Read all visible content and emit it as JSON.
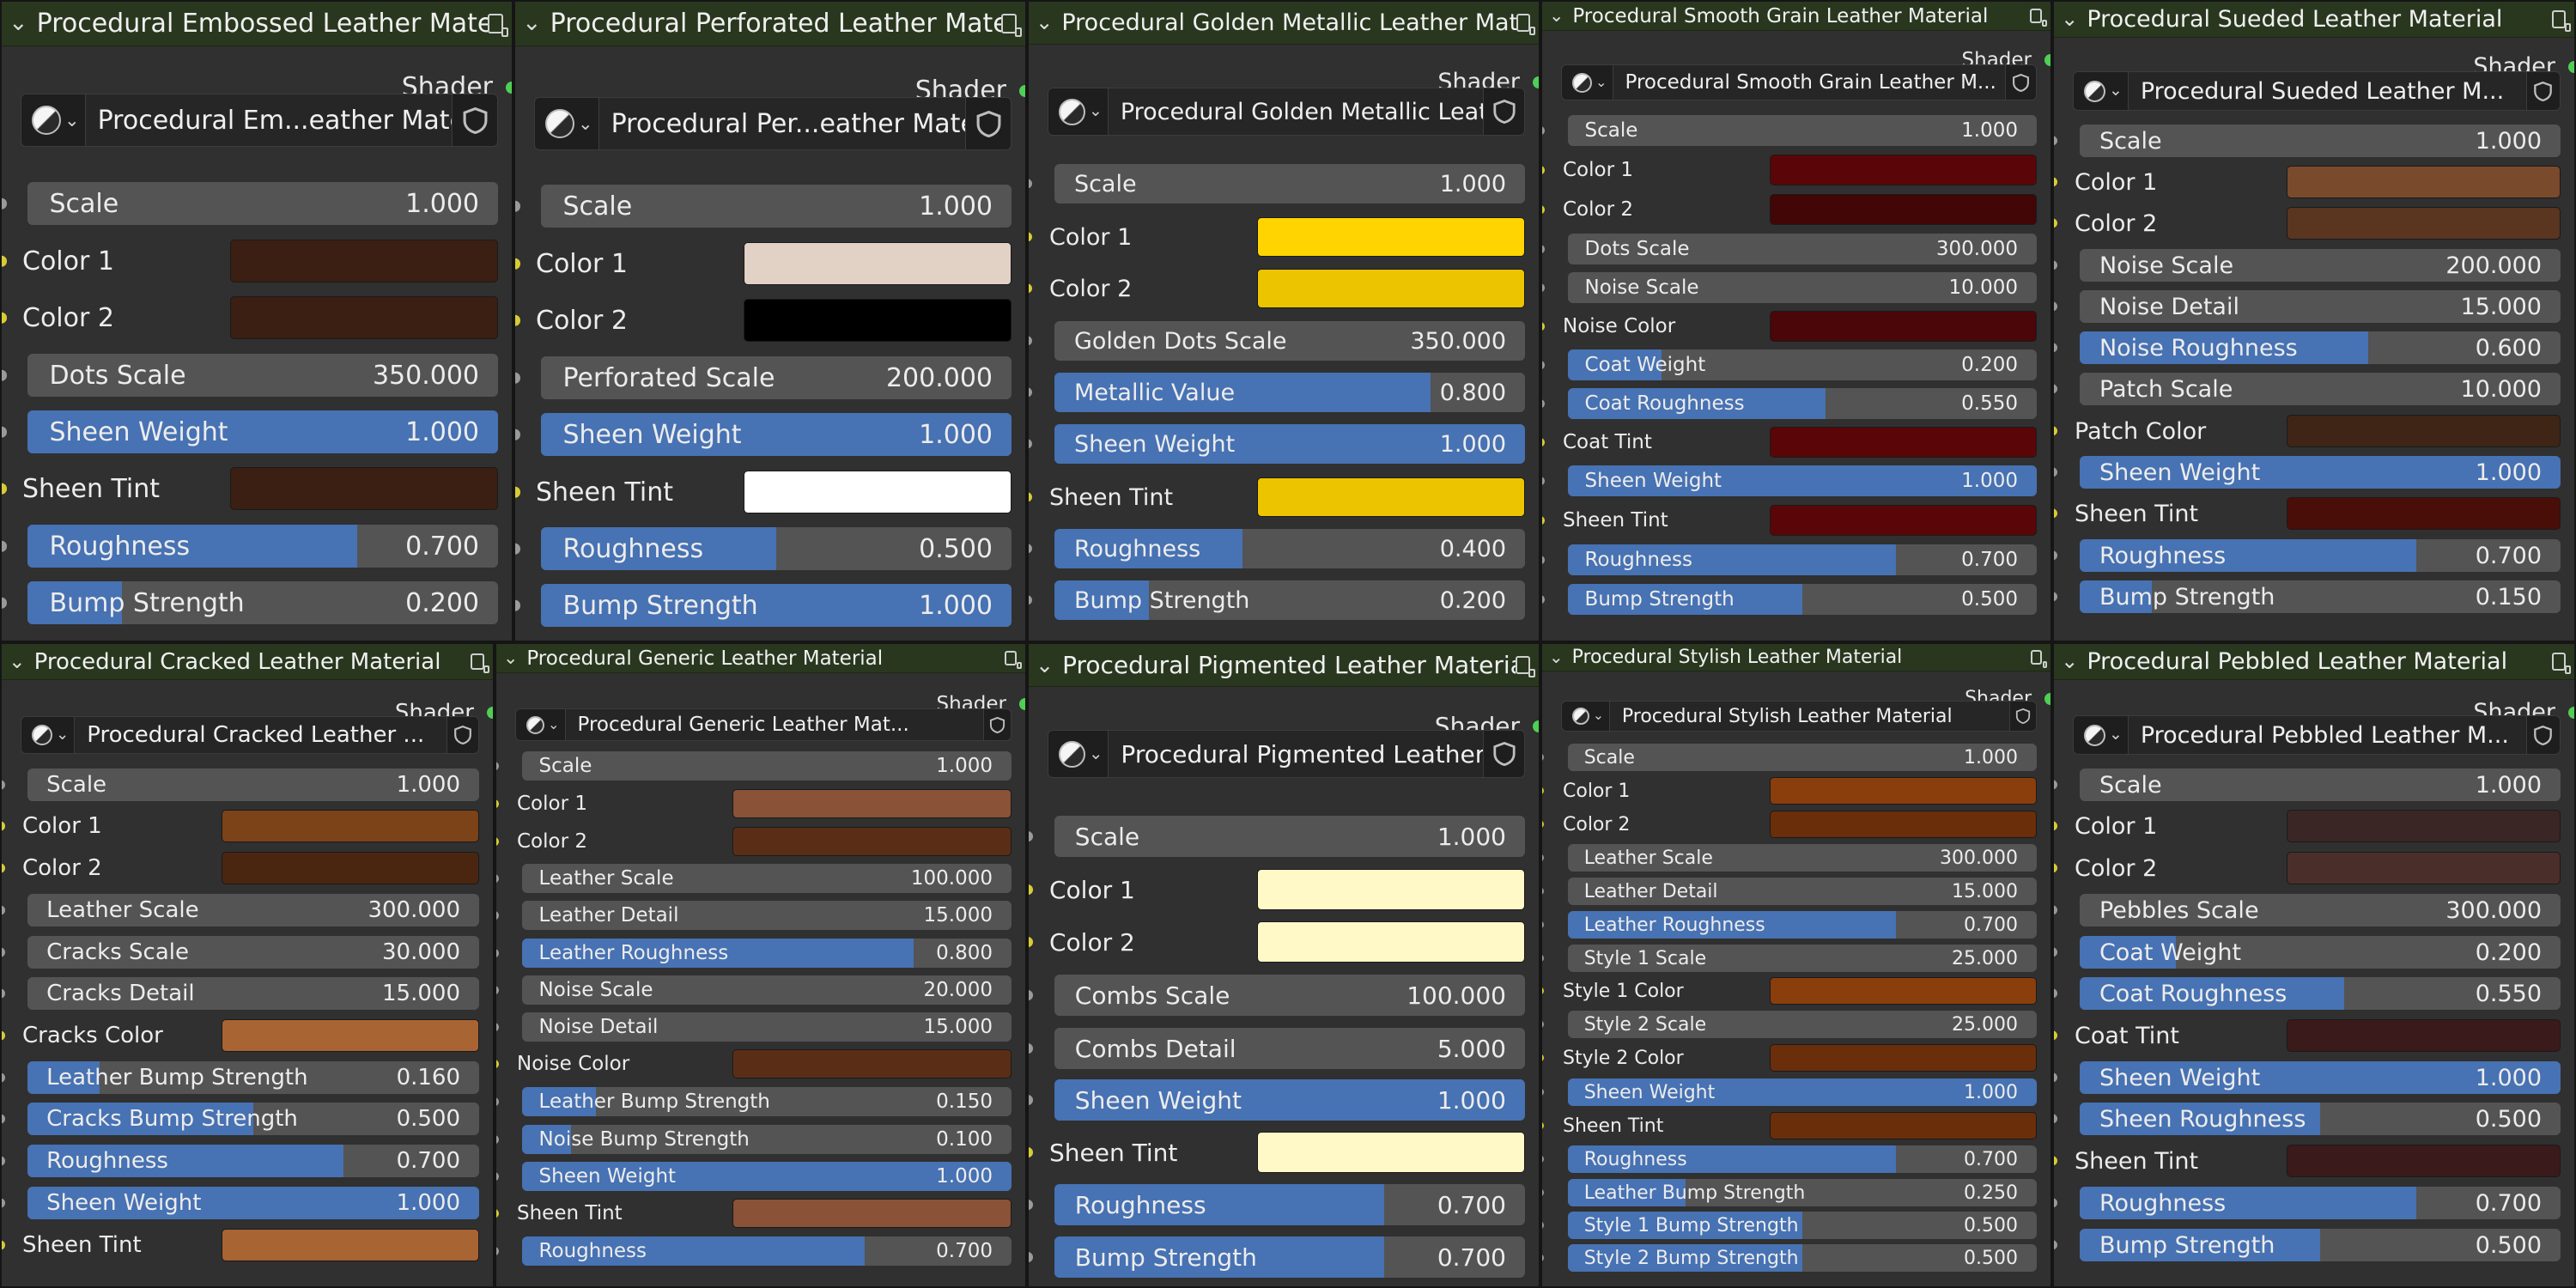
{
  "output_label": "Shader",
  "nodes": [
    {
      "title": "Procedural Embossed Leather Material",
      "material": "Procedural Em...eather Material",
      "params": [
        {
          "label": "Scale",
          "value": "1.000",
          "type": "num",
          "fill": 0
        },
        {
          "label": "Color 1",
          "type": "color",
          "color": "#3a1f12"
        },
        {
          "label": "Color 2",
          "type": "color",
          "color": "#3a1f12"
        },
        {
          "label": "Dots Scale",
          "value": "350.000",
          "type": "num",
          "fill": 0
        },
        {
          "label": "Sheen Weight",
          "value": "1.000",
          "type": "num",
          "fill": 1
        },
        {
          "label": "Sheen Tint",
          "type": "color",
          "color": "#3a1f12"
        },
        {
          "label": "Roughness",
          "value": "0.700",
          "type": "num",
          "fill": 0.7
        },
        {
          "label": "Bump Strength",
          "value": "0.200",
          "type": "num",
          "fill": 0.2
        }
      ]
    },
    {
      "title": "Procedural Perforated Leather Material",
      "material": "Procedural Per...eather Material",
      "params": [
        {
          "label": "Scale",
          "value": "1.000",
          "type": "num",
          "fill": 0
        },
        {
          "label": "Color 1",
          "type": "color",
          "color": "#e2d1c5"
        },
        {
          "label": "Color 2",
          "type": "color",
          "color": "#000000"
        },
        {
          "label": "Perforated Scale",
          "value": "200.000",
          "type": "num",
          "fill": 0
        },
        {
          "label": "Sheen Weight",
          "value": "1.000",
          "type": "num",
          "fill": 1
        },
        {
          "label": "Sheen Tint",
          "type": "color",
          "color": "#ffffff"
        },
        {
          "label": "Roughness",
          "value": "0.500",
          "type": "num",
          "fill": 0.5
        },
        {
          "label": "Bump Strength",
          "value": "1.000",
          "type": "num",
          "fill": 1
        }
      ]
    },
    {
      "title": "Procedural Golden Metallic Leather Material",
      "material": "Procedural Golden Metallic Leather ...",
      "params": [
        {
          "label": "Scale",
          "value": "1.000",
          "type": "num",
          "fill": 0
        },
        {
          "label": "Color 1",
          "type": "color",
          "color": "#ffd400"
        },
        {
          "label": "Color 2",
          "type": "color",
          "color": "#ecc400"
        },
        {
          "label": "Golden Dots Scale",
          "value": "350.000",
          "type": "num",
          "fill": 0
        },
        {
          "label": "Metallic Value",
          "value": "0.800",
          "type": "num",
          "fill": 0.8
        },
        {
          "label": "Sheen Weight",
          "value": "1.000",
          "type": "num",
          "fill": 1
        },
        {
          "label": "Sheen Tint",
          "type": "color",
          "color": "#ecc400"
        },
        {
          "label": "Roughness",
          "value": "0.400",
          "type": "num",
          "fill": 0.4
        },
        {
          "label": "Bump Strength",
          "value": "0.200",
          "type": "num",
          "fill": 0.2
        }
      ]
    },
    {
      "title": "Procedural Smooth Grain Leather Material",
      "material": "Procedural Smooth Grain Leather M...",
      "params": [
        {
          "label": "Scale",
          "value": "1.000",
          "type": "num",
          "fill": 0
        },
        {
          "label": "Color 1",
          "type": "color",
          "color": "#5a0608"
        },
        {
          "label": "Color 2",
          "type": "color",
          "color": "#420606"
        },
        {
          "label": "Dots Scale",
          "value": "300.000",
          "type": "num",
          "fill": 0
        },
        {
          "label": "Noise Scale",
          "value": "10.000",
          "type": "num",
          "fill": 0
        },
        {
          "label": "Noise Color",
          "type": "color",
          "color": "#4a0608"
        },
        {
          "label": "Coat Weight",
          "value": "0.200",
          "type": "num",
          "fill": 0.2
        },
        {
          "label": "Coat Roughness",
          "value": "0.550",
          "type": "num",
          "fill": 0.55
        },
        {
          "label": "Coat Tint",
          "type": "color",
          "color": "#5a0608"
        },
        {
          "label": "Sheen Weight",
          "value": "1.000",
          "type": "num",
          "fill": 1
        },
        {
          "label": "Sheen Tint",
          "type": "color",
          "color": "#5a0608"
        },
        {
          "label": "Roughness",
          "value": "0.700",
          "type": "num",
          "fill": 0.7
        },
        {
          "label": "Bump Strength",
          "value": "0.500",
          "type": "num",
          "fill": 0.5
        }
      ]
    },
    {
      "title": "Procedural Sueded Leather Material",
      "material": "Procedural Sueded Leather M...",
      "params": [
        {
          "label": "Scale",
          "value": "1.000",
          "type": "num",
          "fill": 0
        },
        {
          "label": "Color 1",
          "type": "color",
          "color": "#7a4a2c"
        },
        {
          "label": "Color 2",
          "type": "color",
          "color": "#5a3520"
        },
        {
          "label": "Noise Scale",
          "value": "200.000",
          "type": "num",
          "fill": 0
        },
        {
          "label": "Noise Detail",
          "value": "15.000",
          "type": "num",
          "fill": 0
        },
        {
          "label": "Noise Roughness",
          "value": "0.600",
          "type": "num",
          "fill": 0.6
        },
        {
          "label": "Patch Scale",
          "value": "10.000",
          "type": "num",
          "fill": 0
        },
        {
          "label": "Patch Color",
          "type": "color",
          "color": "#3e2516"
        },
        {
          "label": "Sheen Weight",
          "value": "1.000",
          "type": "num",
          "fill": 1
        },
        {
          "label": "Sheen Tint",
          "type": "color",
          "color": "#4a0e08"
        },
        {
          "label": "Roughness",
          "value": "0.700",
          "type": "num",
          "fill": 0.7
        },
        {
          "label": "Bump Strength",
          "value": "0.150",
          "type": "num",
          "fill": 0.15
        }
      ]
    },
    {
      "title": "Procedural Cracked Leather Material",
      "material": "Procedural Cracked Leather ...",
      "params": [
        {
          "label": "Scale",
          "value": "1.000",
          "type": "num",
          "fill": 0
        },
        {
          "label": "Color 1",
          "type": "color",
          "color": "#7c4218"
        },
        {
          "label": "Color 2",
          "type": "color",
          "color": "#4a2610"
        },
        {
          "label": "Leather Scale",
          "value": "300.000",
          "type": "num",
          "fill": 0
        },
        {
          "label": "Cracks Scale",
          "value": "30.000",
          "type": "num",
          "fill": 0
        },
        {
          "label": "Cracks Detail",
          "value": "15.000",
          "type": "num",
          "fill": 0
        },
        {
          "label": "Cracks Color",
          "type": "color",
          "color": "#a86432"
        },
        {
          "label": "Leather Bump Strength",
          "value": "0.160",
          "type": "num",
          "fill": 0.16
        },
        {
          "label": "Cracks Bump Strength",
          "value": "0.500",
          "type": "num",
          "fill": 0.5
        },
        {
          "label": "Roughness",
          "value": "0.700",
          "type": "num",
          "fill": 0.7
        },
        {
          "label": "Sheen Weight",
          "value": "1.000",
          "type": "num",
          "fill": 1
        },
        {
          "label": "Sheen Tint",
          "type": "color",
          "color": "#a86432"
        }
      ]
    },
    {
      "title": "Procedural Generic Leather Material",
      "material": "Procedural Generic Leather Mat...",
      "params": [
        {
          "label": "Scale",
          "value": "1.000",
          "type": "num",
          "fill": 0
        },
        {
          "label": "Color 1",
          "type": "color",
          "color": "#8a5236"
        },
        {
          "label": "Color 2",
          "type": "color",
          "color": "#5a2e16"
        },
        {
          "label": "Leather Scale",
          "value": "100.000",
          "type": "num",
          "fill": 0
        },
        {
          "label": "Leather Detail",
          "value": "15.000",
          "type": "num",
          "fill": 0
        },
        {
          "label": "Leather Roughness",
          "value": "0.800",
          "type": "num",
          "fill": 0.8
        },
        {
          "label": "Noise Scale",
          "value": "20.000",
          "type": "num",
          "fill": 0
        },
        {
          "label": "Noise Detail",
          "value": "15.000",
          "type": "num",
          "fill": 0
        },
        {
          "label": "Noise Color",
          "type": "color",
          "color": "#5a2e16"
        },
        {
          "label": "Leather Bump Strength",
          "value": "0.150",
          "type": "num",
          "fill": 0.15
        },
        {
          "label": "Noise Bump Strength",
          "value": "0.100",
          "type": "num",
          "fill": 0.1
        },
        {
          "label": "Sheen Weight",
          "value": "1.000",
          "type": "num",
          "fill": 1
        },
        {
          "label": "Sheen Tint",
          "type": "color",
          "color": "#8a5236"
        },
        {
          "label": "Roughness",
          "value": "0.700",
          "type": "num",
          "fill": 0.7
        }
      ]
    },
    {
      "title": "Procedural Pigmented Leather Material",
      "material": "Procedural Pigmented Leather ...",
      "params": [
        {
          "label": "Scale",
          "value": "1.000",
          "type": "num",
          "fill": 0
        },
        {
          "label": "Color 1",
          "type": "color",
          "color": "#fff9c8"
        },
        {
          "label": "Color 2",
          "type": "color",
          "color": "#fff9c8"
        },
        {
          "label": "Combs Scale",
          "value": "100.000",
          "type": "num",
          "fill": 0
        },
        {
          "label": "Combs Detail",
          "value": "5.000",
          "type": "num",
          "fill": 0
        },
        {
          "label": "Sheen Weight",
          "value": "1.000",
          "type": "num",
          "fill": 1
        },
        {
          "label": "Sheen Tint",
          "type": "color",
          "color": "#fff9c8"
        },
        {
          "label": "Roughness",
          "value": "0.700",
          "type": "num",
          "fill": 0.7
        },
        {
          "label": "Bump Strength",
          "value": "0.700",
          "type": "num",
          "fill": 0.7
        }
      ]
    },
    {
      "title": "Procedural Stylish Leather Material",
      "material": "Procedural Stylish Leather Material",
      "params": [
        {
          "label": "Scale",
          "value": "1.000",
          "type": "num",
          "fill": 0
        },
        {
          "label": "Color 1",
          "type": "color",
          "color": "#8a3e0c"
        },
        {
          "label": "Color 2",
          "type": "color",
          "color": "#6a2e0a"
        },
        {
          "label": "Leather Scale",
          "value": "300.000",
          "type": "num",
          "fill": 0
        },
        {
          "label": "Leather Detail",
          "value": "15.000",
          "type": "num",
          "fill": 0
        },
        {
          "label": "Leather Roughness",
          "value": "0.700",
          "type": "num",
          "fill": 0.7
        },
        {
          "label": "Style 1 Scale",
          "value": "25.000",
          "type": "num",
          "fill": 0
        },
        {
          "label": "Style 1 Color",
          "type": "color",
          "color": "#8a3e0c"
        },
        {
          "label": "Style 2 Scale",
          "value": "25.000",
          "type": "num",
          "fill": 0
        },
        {
          "label": "Style 2 Color",
          "type": "color",
          "color": "#6a2e0a"
        },
        {
          "label": "Sheen Weight",
          "value": "1.000",
          "type": "num",
          "fill": 1
        },
        {
          "label": "Sheen Tint",
          "type": "color",
          "color": "#6a2e0a"
        },
        {
          "label": "Roughness",
          "value": "0.700",
          "type": "num",
          "fill": 0.7
        },
        {
          "label": "Leather Bump Strength",
          "value": "0.250",
          "type": "num",
          "fill": 0.25
        },
        {
          "label": "Style 1 Bump Strength",
          "value": "0.500",
          "type": "num",
          "fill": 0.5
        },
        {
          "label": "Style 2 Bump Strength",
          "value": "0.500",
          "type": "num",
          "fill": 0.5
        }
      ]
    },
    {
      "title": "Procedural Pebbled Leather Material",
      "material": "Procedural Pebbled Leather M...",
      "params": [
        {
          "label": "Scale",
          "value": "1.000",
          "type": "num",
          "fill": 0
        },
        {
          "label": "Color 1",
          "type": "color",
          "color": "#3a2624"
        },
        {
          "label": "Color 2",
          "type": "color",
          "color": "#4a2e2a"
        },
        {
          "label": "Pebbles Scale",
          "value": "300.000",
          "type": "num",
          "fill": 0
        },
        {
          "label": "Coat Weight",
          "value": "0.200",
          "type": "num",
          "fill": 0.2
        },
        {
          "label": "Coat Roughness",
          "value": "0.550",
          "type": "num",
          "fill": 0.55
        },
        {
          "label": "Coat Tint",
          "type": "color",
          "color": "#3a1a1a"
        },
        {
          "label": "Sheen Weight",
          "value": "1.000",
          "type": "num",
          "fill": 1
        },
        {
          "label": "Sheen Roughness",
          "value": "0.500",
          "type": "num",
          "fill": 0.5
        },
        {
          "label": "Sheen Tint",
          "type": "color",
          "color": "#3a1a1a"
        },
        {
          "label": "Roughness",
          "value": "0.700",
          "type": "num",
          "fill": 0.7
        },
        {
          "label": "Bump Strength",
          "value": "0.500",
          "type": "num",
          "fill": 0.5
        }
      ]
    }
  ]
}
